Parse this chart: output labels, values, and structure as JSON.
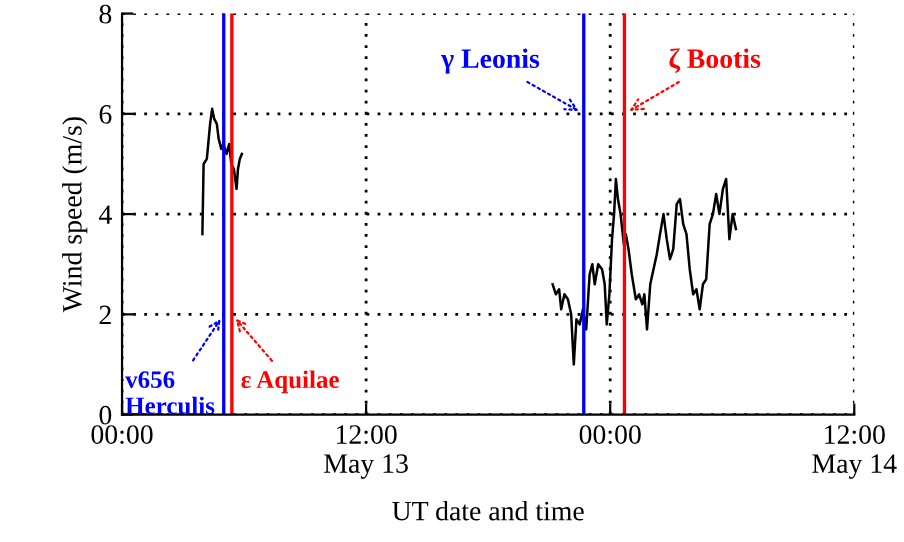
{
  "chart_data": {
    "type": "line",
    "xlabel": "UT date and time",
    "ylabel": "Wind speed (m/s)",
    "series": [
      {
        "color": "#000000",
        "x": [
          3.95,
          4.01,
          4.17,
          4.33,
          4.43,
          4.53,
          4.66,
          4.75,
          4.88,
          4.98,
          5.14,
          5.27,
          5.37,
          5.5,
          5.63,
          5.7,
          5.79,
          5.89,
          13.0,
          21.17,
          21.33,
          21.49,
          21.59,
          21.75,
          21.92,
          22.08,
          22.21,
          22.34,
          22.5,
          22.66,
          22.82,
          22.99,
          23.12,
          23.24,
          23.41,
          23.6,
          23.73,
          23.83,
          23.96,
          24.09,
          24.19,
          24.28,
          24.38,
          24.51,
          24.67,
          24.77,
          24.9,
          25.06,
          25.26,
          25.42,
          25.58,
          25.68,
          25.81,
          25.97,
          26.13,
          26.29,
          26.45,
          26.62,
          26.78,
          26.94,
          27.1,
          27.27,
          27.43,
          27.59,
          27.75,
          27.91,
          28.08,
          28.24,
          28.4,
          28.56,
          28.72,
          28.89,
          29.05,
          29.21,
          29.37,
          29.54,
          29.7,
          29.86,
          30.02,
          30.18
        ],
        "values": [
          3.6,
          5.0,
          5.1,
          5.8,
          6.1,
          5.9,
          5.8,
          5.5,
          5.3,
          5.4,
          5.2,
          5.4,
          5.0,
          4.9,
          4.5,
          4.9,
          5.1,
          5.2,
          null,
          2.6,
          2.4,
          2.5,
          2.1,
          2.4,
          2.3,
          2.0,
          1.0,
          1.9,
          1.8,
          2.1,
          1.7,
          2.8,
          3.0,
          2.6,
          3.0,
          2.9,
          2.6,
          1.8,
          2.4,
          3.5,
          4.0,
          4.7,
          4.3,
          4.0,
          3.4,
          3.6,
          3.3,
          2.8,
          2.3,
          2.4,
          2.2,
          2.4,
          1.7,
          2.6,
          2.9,
          3.2,
          3.6,
          4.0,
          3.5,
          3.1,
          3.3,
          4.2,
          4.3,
          3.8,
          3.6,
          2.9,
          2.4,
          2.5,
          2.1,
          2.6,
          2.7,
          3.8,
          4.0,
          4.4,
          4.0,
          4.5,
          4.7,
          3.5,
          4.0,
          3.7
        ]
      }
    ],
    "xlim": [
      0,
      36
    ],
    "xticks": [
      {
        "value": 0,
        "label": "00:00"
      },
      {
        "value": 12,
        "label": "12:00\nMay 13"
      },
      {
        "value": 24,
        "label": "00:00"
      },
      {
        "value": 36,
        "label": "12:00\nMay 14"
      }
    ],
    "ylim": [
      0,
      8
    ],
    "yticks": [
      0,
      2,
      4,
      6,
      8
    ],
    "grid": true,
    "legend": false,
    "marker": "none",
    "line_style": "solid",
    "ref_lines": [
      {
        "axis": "x",
        "value": 5.0,
        "color": "#0000ff"
      },
      {
        "axis": "x",
        "value": 5.4,
        "color": "#ff0000"
      },
      {
        "axis": "x",
        "value": 22.7,
        "color": "#0000ff"
      },
      {
        "axis": "x",
        "value": 24.7,
        "color": "#ff0000"
      }
    ],
    "annotations": [
      {
        "text": "v656\nHerculis",
        "x": 5.0,
        "y": 2
      },
      {
        "text": "ε Aquilae",
        "x": 5.4,
        "y": 2
      },
      {
        "text": "γ Leonis",
        "x": 22.7,
        "y": 6
      },
      {
        "text": "ζ Bootis",
        "x": 24.7,
        "y": 6
      }
    ]
  }
}
